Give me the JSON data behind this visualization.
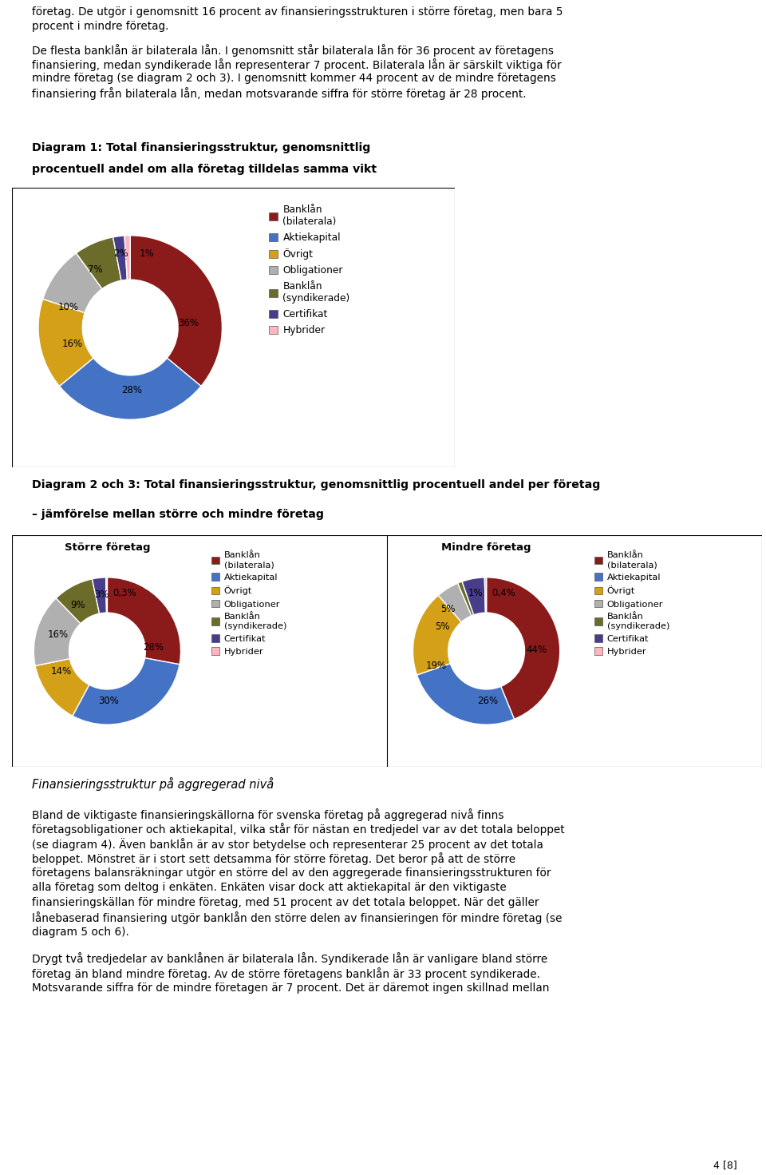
{
  "page_text_top": [
    "företag. De utgör i genomsnitt 16 procent av finansieringsstrukturen i större företag, men bara 5",
    "procent i mindre företag.",
    "De flesta banklån är bilaterala lån. I genomsnitt står bilaterala lån för 36 procent av företagens",
    "finansiering, medan syndikerade lån representerar 7 procent. Bilaterala lån är särskilt viktiga för",
    "mindre företag (se diagram 2 och 3). I genomsnitt kommer 44 procent av de mindre företagens",
    "finansiering från bilaterala lån, medan motsvarande siffra för större företag är 28 procent."
  ],
  "diagram1_title_line1": "Diagram 1: Total finansieringsstruktur, genomsnittlig",
  "diagram1_title_line2": "procentuell andel om alla företag tilldelas samma vikt",
  "diagram23_title_line1": "Diagram 2 och 3: Total finansieringsstruktur, genomsnittlig procentuell andel per företag",
  "diagram23_title_line2": "– jämförelse mellan större och mindre företag",
  "diagram1_values": [
    36,
    28,
    16,
    10,
    7,
    2,
    1
  ],
  "diagram2_title": "Större företag",
  "diagram2_values": [
    28,
    30,
    14,
    16,
    9,
    3,
    0.3
  ],
  "diagram3_title": "Mindre företag",
  "diagram3_values": [
    44,
    26,
    19,
    5,
    1,
    5,
    0.4
  ],
  "legend_labels": [
    "Banklån\n(bilaterala)",
    "Aktiekapital",
    "Övrigt",
    "Obligationer",
    "Banklån\n(syndikerade)",
    "Certifikat",
    "Hybrider"
  ],
  "colors": [
    "#8B1A1A",
    "#4472C4",
    "#D4A017",
    "#B0B0B0",
    "#6B6B2A",
    "#483D8B",
    "#FFB6C1"
  ],
  "section_italic_title": "Finansieringsstruktur på aggregerad nivå",
  "body_text": [
    "Bland de viktigaste finansieringskällorna för svenska företag på aggregerad nivå finns",
    "företagsobligationer och aktiekapital, vilka står för nästan en tredjedel var av det totala beloppet",
    "(se diagram 4). Även banklån är av stor betydelse och representerar 25 procent av det totala",
    "beloppet. Mönstret är i stort sett detsamma för större företag. Det beror på att de större",
    "företagens balansräkningar utgör en större del av den aggregerade finansieringsstrukturen för",
    "alla företag som deltog i enkäten. Enkäten visar dock att aktiekapital är den viktigaste",
    "finansieringskällan för mindre företag, med 51 procent av det totala beloppet. När det gäller",
    "lånebaserad finansiering utgör banklån den större delen av finansieringen för mindre företag (se",
    "diagram 5 och 6).",
    "Drygt två tredjedelar av banklånen är bilaterala lån. Syndikerade lån är vanligare bland större",
    "företag än bland mindre företag. Av de större företagens banklån är 33 procent syndikerade.",
    "Motsvarande siffra för de mindre företagen är 7 procent. Det är däremot ingen skillnad mellan"
  ],
  "page_number": "4 [8]",
  "d1_label_texts": [
    "36%",
    "28%",
    "16%",
    "10%",
    "7%",
    "2%",
    "1%"
  ],
  "d2_label_texts": [
    "28%",
    "30%",
    "14%",
    "16%",
    "9%",
    "3%",
    "0,3%"
  ],
  "d3_label_texts": [
    "44%",
    "26%",
    "19%",
    "5%",
    "1%",
    "5%",
    "0,4%"
  ]
}
